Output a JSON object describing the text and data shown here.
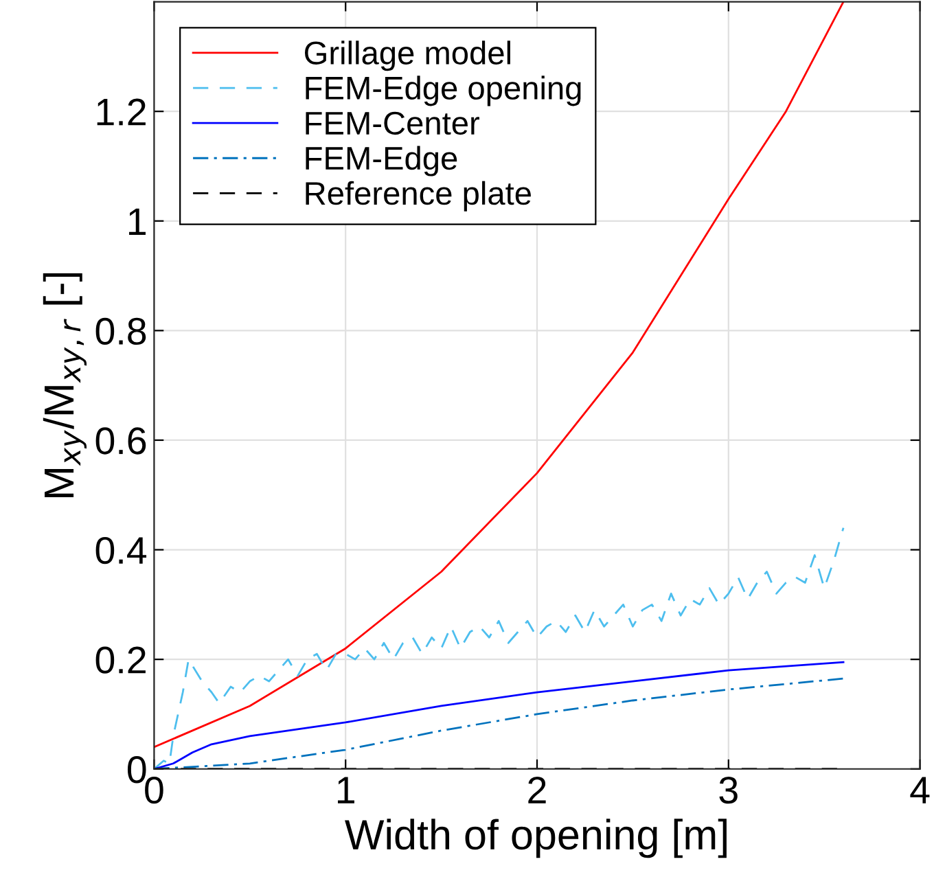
{
  "chart_data": {
    "type": "line",
    "xlabel": "Width of opening [m]",
    "ylabel": "M$_{xy}$/M$_{xy,r}$ [-]",
    "xlim": [
      0,
      4
    ],
    "xticks": [
      0,
      1,
      2,
      3,
      4
    ],
    "ylim": [
      0,
      1.4
    ],
    "yticks": [
      0,
      0.2,
      0.4,
      0.6,
      0.8,
      1,
      1.2
    ],
    "grid": true,
    "legend": "top left",
    "series": [
      {
        "name": "Grillage model",
        "color": "#ff0000",
        "line_style": "solid",
        "x": [
          0,
          0.5,
          1,
          1.5,
          2,
          2.5,
          3,
          3.3,
          3.6
        ],
        "values": [
          0.04,
          0.115,
          0.22,
          0.36,
          0.54,
          0.76,
          1.04,
          1.2,
          1.4
        ]
      },
      {
        "name": "FEM-Edge opening",
        "color": "#4dbeee",
        "line_style": "dashed",
        "x": [
          0,
          0.05,
          0.08,
          0.1,
          0.15,
          0.18,
          0.25,
          0.3,
          0.34,
          0.4,
          0.45,
          0.5,
          0.55,
          0.6,
          0.65,
          0.7,
          0.75,
          0.8,
          0.85,
          0.9,
          0.95,
          1.0,
          1.05,
          1.1,
          1.15,
          1.2,
          1.25,
          1.3,
          1.35,
          1.4,
          1.45,
          1.5,
          1.55,
          1.6,
          1.65,
          1.7,
          1.75,
          1.8,
          1.85,
          1.9,
          1.95,
          2.0,
          2.05,
          2.1,
          2.15,
          2.2,
          2.25,
          2.3,
          2.35,
          2.4,
          2.45,
          2.5,
          2.55,
          2.6,
          2.65,
          2.7,
          2.75,
          2.8,
          2.85,
          2.9,
          2.95,
          3.0,
          3.05,
          3.1,
          3.15,
          3.2,
          3.25,
          3.3,
          3.35,
          3.4,
          3.45,
          3.5,
          3.55,
          3.6
        ],
        "values": [
          0.0,
          0.015,
          0.01,
          0.06,
          0.14,
          0.2,
          0.16,
          0.14,
          0.12,
          0.15,
          0.14,
          0.16,
          0.17,
          0.16,
          0.18,
          0.2,
          0.17,
          0.2,
          0.21,
          0.18,
          0.21,
          0.21,
          0.2,
          0.22,
          0.2,
          0.23,
          0.2,
          0.23,
          0.24,
          0.21,
          0.24,
          0.22,
          0.26,
          0.22,
          0.25,
          0.26,
          0.24,
          0.27,
          0.23,
          0.25,
          0.27,
          0.24,
          0.26,
          0.27,
          0.25,
          0.28,
          0.25,
          0.29,
          0.26,
          0.28,
          0.3,
          0.26,
          0.29,
          0.3,
          0.27,
          0.32,
          0.28,
          0.31,
          0.3,
          0.33,
          0.3,
          0.32,
          0.35,
          0.31,
          0.34,
          0.36,
          0.32,
          0.34,
          0.35,
          0.34,
          0.39,
          0.33,
          0.38,
          0.44
        ]
      },
      {
        "name": "FEM-Center",
        "color": "#0000ff",
        "line_style": "solid",
        "x": [
          0,
          0.1,
          0.2,
          0.3,
          0.5,
          1,
          1.5,
          2,
          2.5,
          3,
          3.6
        ],
        "values": [
          0,
          0.01,
          0.03,
          0.045,
          0.06,
          0.085,
          0.115,
          0.14,
          0.16,
          0.18,
          0.195
        ]
      },
      {
        "name": "FEM-Edge",
        "color": "#0072bd",
        "line_style": "dashdot",
        "x": [
          0,
          0.5,
          1,
          1.5,
          2,
          2.5,
          3,
          3.6
        ],
        "values": [
          0,
          0.01,
          0.035,
          0.07,
          0.1,
          0.125,
          0.145,
          0.165
        ]
      },
      {
        "name": "Reference plate",
        "color": "#000000",
        "line_style": "dashed",
        "x": [
          0,
          3.6
        ],
        "values": [
          0,
          0
        ]
      }
    ]
  }
}
